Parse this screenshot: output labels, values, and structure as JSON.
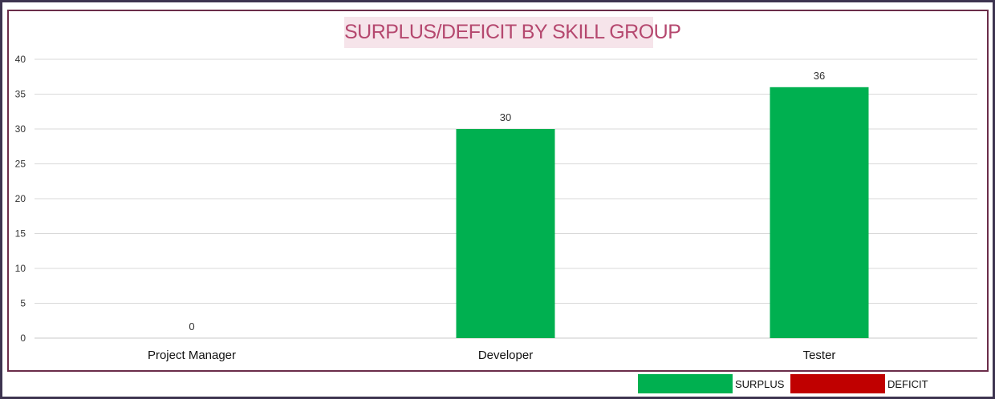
{
  "chart_data": {
    "type": "bar",
    "title": "SURPLUS/DEFICIT BY SKILL GROUP",
    "categories": [
      "Project Manager",
      "Developer",
      "Tester"
    ],
    "series": [
      {
        "name": "SURPLUS",
        "values": [
          0,
          30,
          36
        ],
        "color": "#00b050"
      }
    ],
    "data_labels": [
      "0",
      "30",
      "36"
    ],
    "y_ticks": [
      "0",
      "5",
      "10",
      "15",
      "20",
      "25",
      "30",
      "35",
      "40"
    ],
    "ylim": [
      0,
      40
    ],
    "grid": true,
    "legend": {
      "position": "bottom-right",
      "entries": [
        {
          "label": "SURPLUS",
          "color": "#00b050"
        },
        {
          "label": "DEFICIT",
          "color": "#c00000"
        }
      ]
    }
  }
}
